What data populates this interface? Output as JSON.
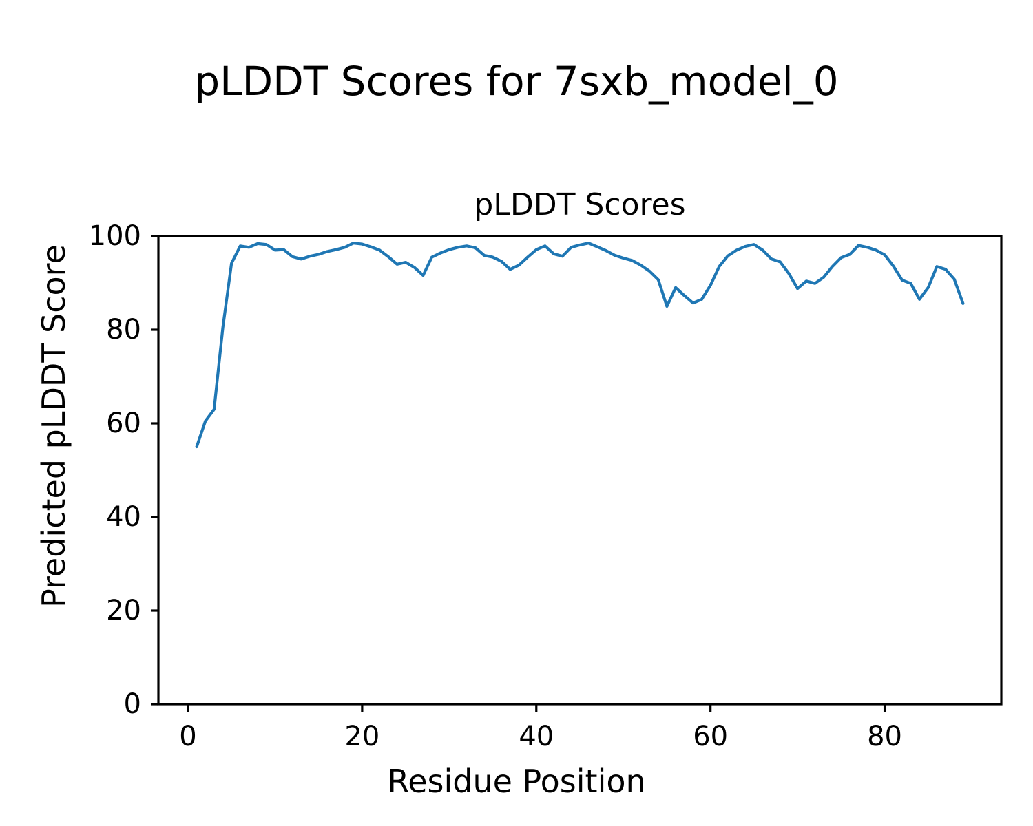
{
  "figure": {
    "suptitle": "pLDDT Scores for 7sxb_model_0",
    "background_color": "#ffffff",
    "text_color": "#000000",
    "spine_color": "#000000"
  },
  "chart_data": {
    "type": "line",
    "title": "pLDDT Scores",
    "xlabel": "Residue Position",
    "ylabel": "Predicted pLDDT Score",
    "xlim": [
      -3.4,
      93.4
    ],
    "ylim": [
      0,
      100
    ],
    "xticks": [
      0,
      20,
      40,
      60,
      80
    ],
    "yticks": [
      0,
      20,
      40,
      60,
      80,
      100
    ],
    "grid": false,
    "legend": "none",
    "line_color": "#1f77b4",
    "series": [
      {
        "name": "pLDDT",
        "x": [
          1,
          2,
          3,
          4,
          5,
          6,
          7,
          8,
          9,
          10,
          11,
          12,
          13,
          14,
          15,
          16,
          17,
          18,
          19,
          20,
          21,
          22,
          23,
          24,
          25,
          26,
          27,
          28,
          29,
          30,
          31,
          32,
          33,
          34,
          35,
          36,
          37,
          38,
          39,
          40,
          41,
          42,
          43,
          44,
          45,
          46,
          47,
          48,
          49,
          50,
          51,
          52,
          53,
          54,
          55,
          56,
          57,
          58,
          59,
          60,
          61,
          62,
          63,
          64,
          65,
          66,
          67,
          68,
          69,
          70,
          71,
          72,
          73,
          74,
          75,
          76,
          77,
          78,
          79,
          80,
          81,
          82,
          83,
          84,
          85,
          86,
          87,
          88,
          89
        ],
        "values": [
          55.0,
          60.5,
          63.0,
          80.5,
          94.2,
          97.9,
          97.6,
          98.4,
          98.2,
          97.0,
          97.1,
          95.6,
          95.1,
          95.7,
          96.1,
          96.7,
          97.1,
          97.6,
          98.5,
          98.3,
          97.7,
          97.0,
          95.6,
          94.0,
          94.4,
          93.3,
          91.6,
          95.5,
          96.4,
          97.1,
          97.6,
          97.9,
          97.5,
          95.9,
          95.5,
          94.6,
          92.9,
          93.8,
          95.5,
          97.1,
          97.9,
          96.2,
          95.7,
          97.6,
          98.1,
          98.5,
          97.7,
          96.9,
          95.9,
          95.3,
          94.8,
          93.8,
          92.5,
          90.7,
          85.0,
          89.0,
          87.3,
          85.7,
          86.5,
          89.5,
          93.5,
          95.8,
          97.0,
          97.8,
          98.2,
          97.0,
          95.1,
          94.5,
          92.0,
          88.8,
          90.4,
          89.9,
          91.2,
          93.5,
          95.4,
          96.1,
          98.0,
          97.6,
          97.0,
          96.0,
          93.6,
          90.6,
          89.9,
          86.5,
          89.0,
          93.5,
          92.9,
          90.8,
          85.6
        ]
      }
    ]
  }
}
